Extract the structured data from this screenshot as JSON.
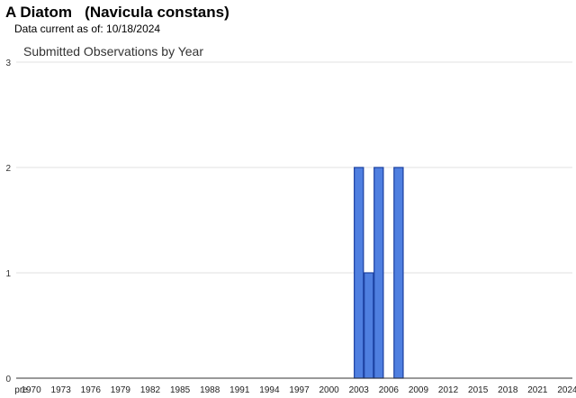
{
  "page": {
    "title": "A Diatom   (Navicula constans)",
    "subtitle": "Data current as of: 10/18/2024"
  },
  "chart_data": {
    "type": "bar",
    "title": "Submitted Observations by Year",
    "xlabel": "",
    "ylabel": "",
    "ylim": [
      0,
      3
    ],
    "yticks": [
      0,
      1,
      2,
      3
    ],
    "grid": true,
    "legend": "none",
    "bar_color": "#4f7fe0",
    "bar_outline": "#1a3fa0",
    "categories": [
      "pre",
      "1970",
      "1971",
      "1972",
      "1973",
      "1974",
      "1975",
      "1976",
      "1977",
      "1978",
      "1979",
      "1980",
      "1981",
      "1982",
      "1983",
      "1984",
      "1985",
      "1986",
      "1987",
      "1988",
      "1989",
      "1990",
      "1991",
      "1992",
      "1993",
      "1994",
      "1995",
      "1996",
      "1997",
      "1998",
      "1999",
      "2000",
      "2001",
      "2002",
      "2003",
      "2004",
      "2005",
      "2006",
      "2007",
      "2008",
      "2009",
      "2010",
      "2011",
      "2012",
      "2013",
      "2014",
      "2015",
      "2016",
      "2017",
      "2018",
      "2019",
      "2020",
      "2021",
      "2022",
      "2023",
      "2024"
    ],
    "values": [
      0,
      0,
      0,
      0,
      0,
      0,
      0,
      0,
      0,
      0,
      0,
      0,
      0,
      0,
      0,
      0,
      0,
      0,
      0,
      0,
      0,
      0,
      0,
      0,
      0,
      0,
      0,
      0,
      0,
      0,
      0,
      0,
      0,
      0,
      2,
      1,
      2,
      0,
      2,
      0,
      0,
      0,
      0,
      0,
      0,
      0,
      0,
      0,
      0,
      0,
      0,
      0,
      0,
      0,
      0,
      0
    ],
    "xtick_labels": [
      "pre",
      "1970",
      "1973",
      "1976",
      "1979",
      "1982",
      "1985",
      "1988",
      "1991",
      "1994",
      "1997",
      "2000",
      "2003",
      "2006",
      "2009",
      "2012",
      "2015",
      "2018",
      "2021",
      "2024"
    ]
  }
}
